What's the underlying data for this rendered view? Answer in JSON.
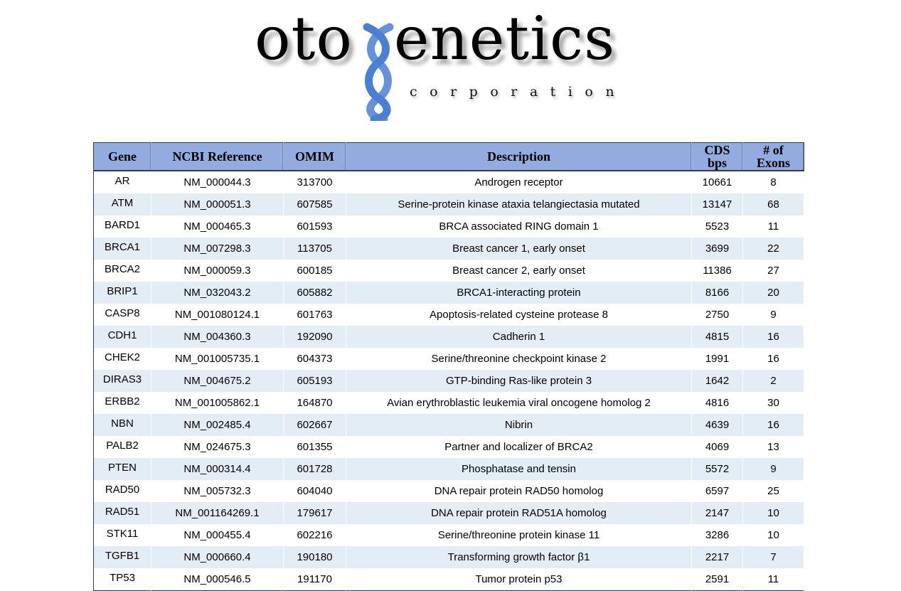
{
  "logo": {
    "word_left": "oto",
    "word_right": "enetics",
    "subtitle": "corporation",
    "helix_color": "#4a7fd6"
  },
  "table": {
    "columns": [
      "Gene",
      "NCBI Reference",
      "OMIM",
      "Description",
      [
        "CDS",
        "bps"
      ],
      [
        "# of",
        "Exons"
      ]
    ],
    "rows": [
      [
        "AR",
        "NM_000044.3",
        "313700",
        "Androgen receptor",
        "10661",
        "8"
      ],
      [
        "ATM",
        "NM_000051.3",
        "607585",
        "Serine-protein kinase ataxia telangiectasia mutated",
        "13147",
        "68"
      ],
      [
        "BARD1",
        "NM_000465.3",
        "601593",
        "BRCA associated RING domain 1",
        "5523",
        "11"
      ],
      [
        "BRCA1",
        "NM_007298.3",
        "113705",
        "Breast cancer 1, early onset",
        "3699",
        "22"
      ],
      [
        "BRCA2",
        "NM_000059.3",
        "600185",
        "Breast cancer 2, early onset",
        "11386",
        "27"
      ],
      [
        "BRIP1",
        "NM_032043.2",
        "605882",
        "BRCA1-interacting protein",
        "8166",
        "20"
      ],
      [
        "CASP8",
        "NM_001080124.1",
        "601763",
        "Apoptosis-related cysteine protease 8",
        "2750",
        "9"
      ],
      [
        "CDH1",
        "NM_004360.3",
        "192090",
        "Cadherin 1",
        "4815",
        "16"
      ],
      [
        "CHEK2",
        "NM_001005735.1",
        "604373",
        "Serine/threonine checkpoint kinase 2",
        "1991",
        "16"
      ],
      [
        "DIRAS3",
        "NM_004675.2",
        "605193",
        "GTP-binding Ras-like protein 3",
        "1642",
        "2"
      ],
      [
        "ERBB2",
        "NM_001005862.1",
        "164870",
        "Avian erythroblastic leukemia viral oncogene homolog 2",
        "4816",
        "30"
      ],
      [
        "NBN",
        "NM_002485.4",
        "602667",
        "Nibrin",
        "4639",
        "16"
      ],
      [
        "PALB2",
        "NM_024675.3",
        "601355",
        "Partner and localizer of BRCA2",
        "4069",
        "13"
      ],
      [
        "PTEN",
        "NM_000314.4",
        "601728",
        "Phosphatase and tensin",
        "5572",
        "9"
      ],
      [
        "RAD50",
        "NM_005732.3",
        "604040",
        "DNA repair protein RAD50 homolog",
        "6597",
        "25"
      ],
      [
        "RAD51",
        "NM_001164269.1",
        "179617",
        "DNA repair protein RAD51A homolog",
        "2147",
        "10"
      ],
      [
        "STK11",
        "NM_000455.4",
        "602216",
        "Serine/threonine protein kinase 11",
        "3286",
        "10"
      ],
      [
        "TGFB1",
        "NM_000660.4",
        "190180",
        "Transforming growth factor β1",
        "2217",
        "7"
      ],
      [
        "TP53",
        "NM_000546.5",
        "191170",
        "Tumor protein p53",
        "2591",
        "11"
      ]
    ]
  }
}
